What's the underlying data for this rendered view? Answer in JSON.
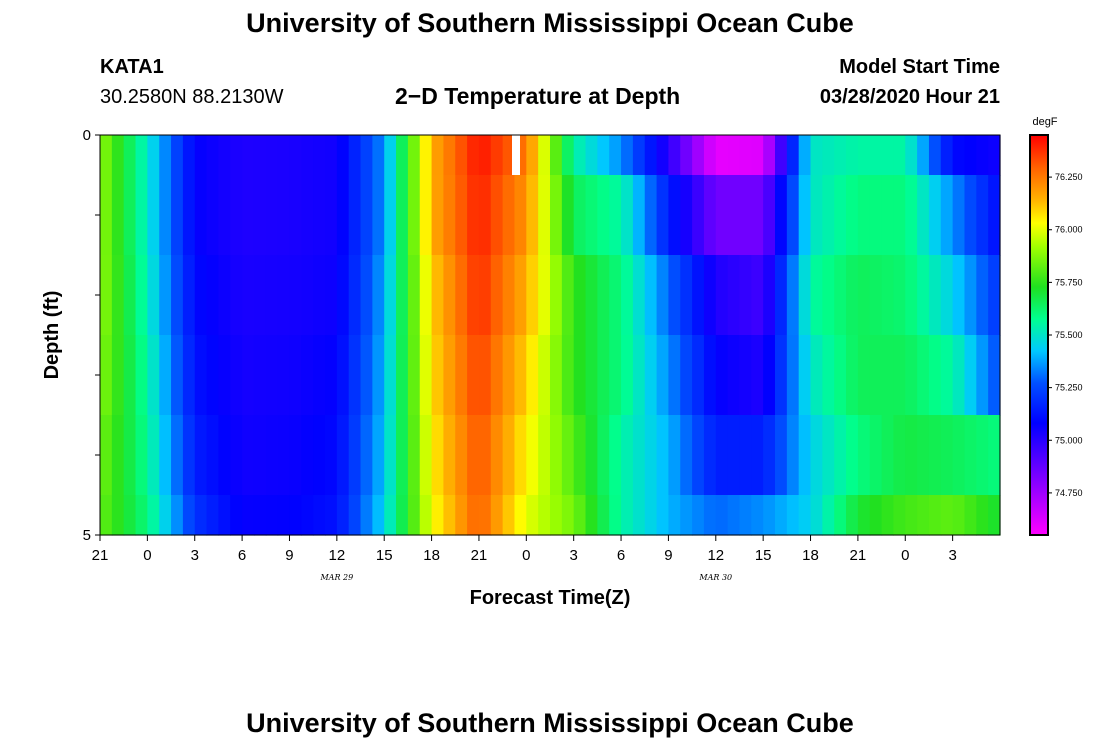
{
  "page": {
    "title_top": "University of Southern Mississippi Ocean Cube",
    "title_bottom": "University of Southern Mississippi Ocean Cube",
    "station_id": "KATA1",
    "station_coords": "30.2580N 88.2130W",
    "panel_title": "2−D Temperature at Depth",
    "model_start_label": "Model Start Time",
    "model_start_value": "03/28/2020 Hour 21"
  },
  "chart_data": {
    "type": "heatmap",
    "title": "2−D Temperature at Depth",
    "xlabel": "Forecast Time(Z)",
    "ylabel": "Depth (ft)",
    "x_tick_labels": [
      "21",
      "0",
      "3",
      "6",
      "9",
      "12",
      "15",
      "18",
      "21",
      "0",
      "3",
      "6",
      "9",
      "12",
      "15",
      "18",
      "21",
      "0",
      "3"
    ],
    "date_labels": [
      {
        "text": "MAR  29",
        "at_hour": 12
      },
      {
        "text": "MAR  30",
        "at_hour": 36
      }
    ],
    "x_hours_range": [
      -3,
      54
    ],
    "y_tick_labels": [
      "0",
      "5"
    ],
    "ylim": [
      0,
      5
    ],
    "depth_bins": [
      [
        0,
        0.5
      ],
      [
        0.5,
        1.5
      ],
      [
        1.5,
        2.5
      ],
      [
        2.5,
        3.5
      ],
      [
        3.5,
        4.5
      ],
      [
        4.5,
        5
      ]
    ],
    "hours": [
      -3,
      0,
      3,
      6,
      9,
      12,
      15,
      18,
      21,
      24,
      27,
      30,
      33,
      36,
      39,
      42,
      45,
      48,
      51,
      54
    ],
    "values": [
      [
        75.9,
        75.5,
        75.08,
        75.02,
        75.03,
        75.05,
        75.35,
        76.15,
        76.42,
        76.25,
        75.55,
        75.35,
        75.0,
        74.6,
        74.62,
        75.5,
        75.55,
        75.55,
        75.1,
        75.05
      ],
      [
        75.9,
        75.5,
        75.08,
        75.02,
        75.03,
        75.05,
        75.35,
        76.15,
        76.4,
        76.2,
        75.65,
        75.55,
        75.15,
        74.85,
        74.85,
        75.5,
        75.6,
        75.6,
        75.35,
        75.1
      ],
      [
        75.9,
        75.52,
        75.1,
        75.03,
        75.04,
        75.06,
        75.38,
        76.1,
        76.38,
        76.15,
        75.75,
        75.6,
        75.3,
        75.02,
        74.95,
        75.55,
        75.65,
        75.62,
        75.45,
        75.2
      ],
      [
        75.88,
        75.55,
        75.12,
        75.04,
        75.05,
        75.08,
        75.4,
        76.08,
        76.35,
        76.1,
        75.75,
        75.6,
        75.35,
        75.08,
        75.02,
        75.5,
        75.65,
        75.65,
        75.55,
        75.25
      ],
      [
        75.85,
        75.57,
        75.15,
        75.05,
        75.06,
        75.1,
        75.42,
        76.05,
        76.32,
        76.05,
        75.8,
        75.55,
        75.4,
        75.15,
        75.15,
        75.45,
        75.6,
        75.68,
        75.65,
        75.6
      ],
      [
        75.83,
        75.6,
        75.2,
        75.07,
        75.08,
        75.12,
        75.45,
        76.02,
        76.3,
        76.0,
        75.85,
        75.55,
        75.4,
        75.3,
        75.35,
        75.45,
        75.7,
        75.78,
        75.82,
        75.7
      ]
    ],
    "colorbar": {
      "unit": "degF",
      "range": [
        74.55,
        76.45
      ],
      "tick_labels": [
        "76.250",
        "76.000",
        "75.750",
        "75.500",
        "75.250",
        "75.000",
        "74.750"
      ]
    }
  }
}
